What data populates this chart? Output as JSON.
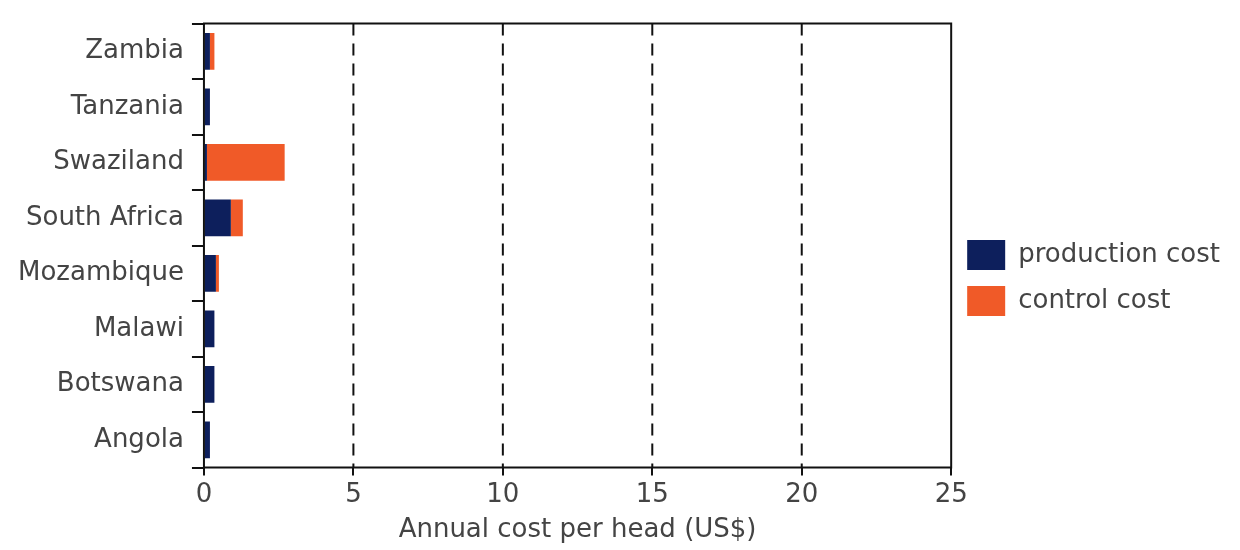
{
  "chart_data": {
    "type": "bar",
    "orientation": "horizontal",
    "stacked": true,
    "xlabel": "Annual cost per head (US$)",
    "categories": [
      "Zambia",
      "Tanzania",
      "Swaziland",
      "South Africa",
      "Mozambique",
      "Malawi",
      "Botswana",
      "Angola"
    ],
    "series": [
      {
        "name": "production cost",
        "color": "#0d1f5c",
        "values": [
          0.2,
          0.2,
          0.1,
          0.9,
          0.4,
          0.35,
          0.35,
          0.2
        ]
      },
      {
        "name": "control cost",
        "color": "#f05a28",
        "values": [
          0.15,
          0,
          2.6,
          0.4,
          0.1,
          0,
          0,
          0
        ]
      }
    ],
    "xlim": [
      0,
      25
    ],
    "xticks": [
      0,
      5,
      10,
      15,
      20,
      25
    ],
    "grid": "x",
    "legend": "right"
  }
}
